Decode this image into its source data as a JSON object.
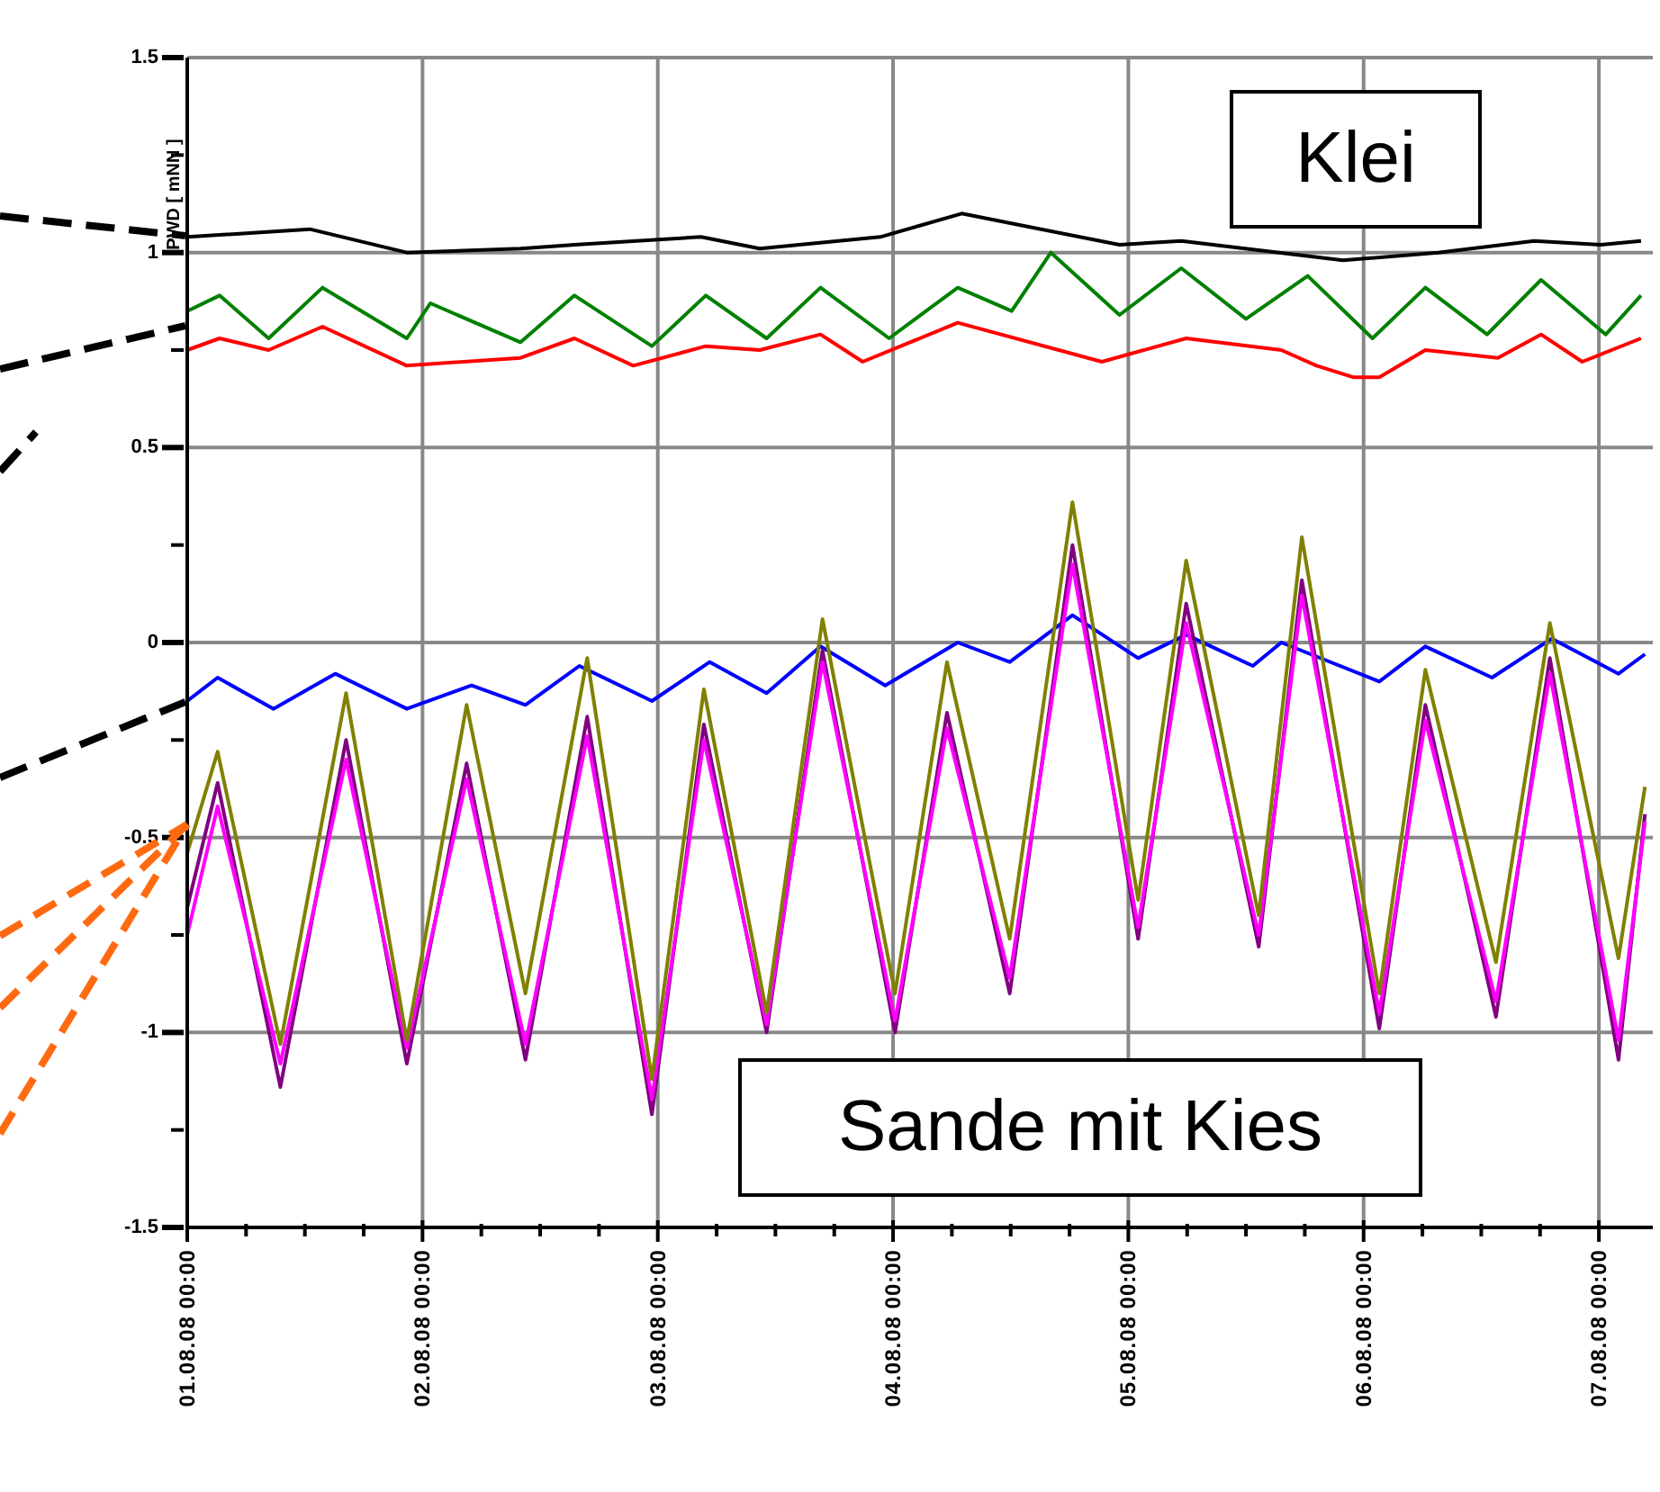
{
  "chart_data": {
    "type": "line",
    "ylabel": "PWD [ mNN ]",
    "xlim": [
      "--08-01T00:00",
      "--08-07T05:30"
    ],
    "xticks": [
      {
        "value": "--08-01T00:00",
        "label": "01.08.08 00:00"
      },
      {
        "value": "--08-01T06:00",
        "label": null
      },
      {
        "value": "--08-01T12:00",
        "label": null
      },
      {
        "value": "--08-01T18:00",
        "label": null
      },
      {
        "value": "--08-02T00:00",
        "label": "02.08.08 00:00"
      },
      {
        "value": "--08-02T06:00",
        "label": null
      },
      {
        "value": "--08-02T12:00",
        "label": null
      },
      {
        "value": "--08-02T18:00",
        "label": null
      },
      {
        "value": "--08-03T00:00",
        "label": "03.08.08 00:00"
      },
      {
        "value": "--08-03T06:00",
        "label": null
      },
      {
        "value": "--08-03T12:00",
        "label": null
      },
      {
        "value": "--08-03T18:00",
        "label": null
      },
      {
        "value": "--08-04T00:00",
        "label": "04.08.08 00:00"
      },
      {
        "value": "--08-04T06:00",
        "label": null
      },
      {
        "value": "--08-04T12:00",
        "label": null
      },
      {
        "value": "--08-04T18:00",
        "label": null
      },
      {
        "value": "--08-05T00:00",
        "label": "05.08.08 00:00"
      },
      {
        "value": "--08-05T06:00",
        "label": null
      },
      {
        "value": "--08-05T12:00",
        "label": null
      },
      {
        "value": "--08-05T18:00",
        "label": null
      },
      {
        "value": "--08-06T00:00",
        "label": "06.08.08 00:00"
      },
      {
        "value": "--08-06T06:00",
        "label": null
      },
      {
        "value": "--08-06T12:00",
        "label": null
      },
      {
        "value": "--08-06T18:00",
        "label": null
      },
      {
        "value": "--08-07T00:00",
        "label": "07.08.08 00:00"
      }
    ],
    "ylim": [
      -1.5,
      1.5
    ],
    "yticks": [
      -1.5,
      {
        "value": -1.25,
        "label": null
      },
      -1,
      {
        "value": -0.75,
        "label": null
      },
      -0.5,
      {
        "value": -0.25,
        "label": null
      },
      0,
      {
        "value": 0.25,
        "label": null
      },
      0.5,
      {
        "value": 0.75,
        "label": null
      },
      1,
      {
        "value": 1.25,
        "label": null
      },
      1.5
    ],
    "grid": true,
    "series": [
      {
        "color": "#000000",
        "x": [
          "--08-01T00:00",
          "--08-01T12:30",
          "--08-01T22:24",
          "--08-02T10:00",
          "--08-02T15:30",
          "--08-03T04:24",
          "--08-03T10:24",
          "--08-03T22:42",
          "--08-04T07:00",
          "--08-04T23:06",
          "--08-05T05:24",
          "--08-05T21:54",
          "--08-06T07:36",
          "--08-06T17:24",
          "--08-07T00:12",
          "--08-07T04:18"
        ],
        "values": [
          1.04,
          1.06,
          1.0,
          1.01,
          1.02,
          1.04,
          1.01,
          1.04,
          1.1,
          1.02,
          1.03,
          0.98,
          1.0,
          1.03,
          1.02,
          1.03
        ]
      },
      {
        "color": "#008000",
        "x": [
          "--08-01T00:00",
          "--08-01T03:18",
          "--08-01T08:18",
          "--08-01T13:48",
          "--08-01T22:24",
          "--08-02T00:48",
          "--08-02T10:00",
          "--08-02T15:30",
          "--08-02T23:24",
          "--08-03T04:54",
          "--08-03T11:06",
          "--08-03T16:36",
          "--08-03T23:36",
          "--08-04T06:36",
          "--08-04T12:06",
          "--08-04T16:06",
          "--08-04T23:06",
          "--08-05T05:24",
          "--08-05T12:00",
          "--08-05T18:18",
          "--08-06T00:54",
          "--08-06T06:18",
          "--08-06T12:36",
          "--08-06T18:06",
          "--08-07T00:42",
          "--08-07T04:18"
        ],
        "values": [
          0.85,
          0.89,
          0.78,
          0.91,
          0.78,
          0.87,
          0.77,
          0.89,
          0.76,
          0.89,
          0.78,
          0.91,
          0.78,
          0.91,
          0.85,
          1.0,
          0.84,
          0.96,
          0.83,
          0.94,
          0.78,
          0.91,
          0.79,
          0.93,
          0.79,
          0.89
        ]
      },
      {
        "color": "#ff0000",
        "x": [
          "--08-01T00:00",
          "--08-01T03:18",
          "--08-01T08:18",
          "--08-01T13:48",
          "--08-01T22:24",
          "--08-02T10:00",
          "--08-02T15:30",
          "--08-02T21:30",
          "--08-03T04:54",
          "--08-03T10:24",
          "--08-03T16:36",
          "--08-03T20:54",
          "--08-04T06:36",
          "--08-04T21:18",
          "--08-05T05:54",
          "--08-05T15:36",
          "--08-05T19:12",
          "--08-05T23:00",
          "--08-06T01:36",
          "--08-06T06:18",
          "--08-06T13:42",
          "--08-06T18:06",
          "--08-06T22:18",
          "--08-07T04:18"
        ],
        "values": [
          0.75,
          0.78,
          0.75,
          0.81,
          0.71,
          0.73,
          0.78,
          0.71,
          0.76,
          0.75,
          0.79,
          0.72,
          0.82,
          0.72,
          0.78,
          0.75,
          0.71,
          0.68,
          0.68,
          0.75,
          0.73,
          0.79,
          0.72,
          0.78
        ]
      },
      {
        "color": "#0000ff",
        "x": [
          "--08-01T00:00",
          "--08-01T03:06",
          "--08-01T08:48",
          "--08-01T15:06",
          "--08-01T22:24",
          "--08-02T05:00",
          "--08-02T10:30",
          "--08-02T16:00",
          "--08-02T23:24",
          "--08-03T05:18",
          "--08-03T11:06",
          "--08-03T16:36",
          "--08-03T23:12",
          "--08-04T06:36",
          "--08-04T11:54",
          "--08-04T18:18",
          "--08-05T01:00",
          "--08-05T05:54",
          "--08-05T12:42",
          "--08-05T15:36",
          "--08-06T01:36",
          "--08-06T06:18",
          "--08-06T13:06",
          "--08-06T19:12",
          "--08-07T02:00",
          "--08-07T04:42"
        ],
        "values": [
          -0.15,
          -0.09,
          -0.17,
          -0.08,
          -0.17,
          -0.11,
          -0.16,
          -0.06,
          -0.15,
          -0.05,
          -0.13,
          -0.01,
          -0.11,
          0.0,
          -0.05,
          0.07,
          -0.04,
          0.02,
          -0.06,
          0.0,
          -0.1,
          -0.01,
          -0.09,
          0.01,
          -0.08,
          -0.03
        ]
      },
      {
        "color": "#800080",
        "x": [
          "--08-01T00:00",
          "--08-01T03:06",
          "--08-01T09:30",
          "--08-01T16:12",
          "--08-01T22:24",
          "--08-02T04:30",
          "--08-02T10:30",
          "--08-02T16:48",
          "--08-02T23:24",
          "--08-03T04:42",
          "--08-03T11:06",
          "--08-03T16:48",
          "--08-04T00:12",
          "--08-04T05:30",
          "--08-04T11:54",
          "--08-04T18:18",
          "--08-05T01:00",
          "--08-05T05:54",
          "--08-05T13:18",
          "--08-05T17:42",
          "--08-06T01:36",
          "--08-06T06:18",
          "--08-06T13:30",
          "--08-06T19:00",
          "--08-07T02:00",
          "--08-07T04:42"
        ],
        "values": [
          -0.68,
          -0.36,
          -1.14,
          -0.25,
          -1.08,
          -0.31,
          -1.07,
          -0.19,
          -1.21,
          -0.21,
          -1.0,
          -0.02,
          -1.0,
          -0.18,
          -0.9,
          0.25,
          -0.76,
          0.1,
          -0.78,
          0.16,
          -0.99,
          -0.16,
          -0.96,
          -0.04,
          -1.07,
          -0.44
        ]
      },
      {
        "color": "#ff00ff",
        "x": [
          "--08-01T00:00",
          "--08-01T03:06",
          "--08-01T09:30",
          "--08-01T16:12",
          "--08-01T22:24",
          "--08-02T04:30",
          "--08-02T10:30",
          "--08-02T16:48",
          "--08-02T23:24",
          "--08-03T04:42",
          "--08-03T11:06",
          "--08-03T16:48",
          "--08-04T00:12",
          "--08-04T05:30",
          "--08-04T11:54",
          "--08-04T18:18",
          "--08-05T01:00",
          "--08-05T05:54",
          "--08-05T13:18",
          "--08-05T17:42",
          "--08-06T01:36",
          "--08-06T06:18",
          "--08-06T13:30",
          "--08-06T19:00",
          "--08-07T02:00",
          "--08-07T04:42"
        ],
        "values": [
          -0.75,
          -0.42,
          -1.08,
          -0.3,
          -1.04,
          -0.35,
          -1.03,
          -0.24,
          -1.17,
          -0.25,
          -0.98,
          -0.05,
          -0.97,
          -0.22,
          -0.86,
          0.2,
          -0.73,
          0.05,
          -0.75,
          0.12,
          -0.95,
          -0.2,
          -0.92,
          -0.08,
          -1.02,
          -0.46
        ]
      },
      {
        "color": "#808000",
        "x": [
          "--08-01T00:00",
          "--08-01T03:06",
          "--08-01T09:30",
          "--08-01T16:12",
          "--08-01T22:24",
          "--08-02T04:30",
          "--08-02T10:30",
          "--08-02T16:48",
          "--08-02T23:24",
          "--08-03T04:42",
          "--08-03T11:06",
          "--08-03T16:48",
          "--08-04T00:12",
          "--08-04T05:30",
          "--08-04T11:54",
          "--08-04T18:18",
          "--08-05T01:00",
          "--08-05T05:54",
          "--08-05T13:18",
          "--08-05T17:42",
          "--08-06T01:36",
          "--08-06T06:18",
          "--08-06T13:30",
          "--08-06T19:00",
          "--08-07T02:00",
          "--08-07T04:42"
        ],
        "values": [
          -0.54,
          -0.28,
          -1.03,
          -0.13,
          -1.02,
          -0.16,
          -0.9,
          -0.04,
          -1.12,
          -0.12,
          -0.95,
          0.06,
          -0.9,
          -0.05,
          -0.76,
          0.36,
          -0.66,
          0.21,
          -0.7,
          0.27,
          -0.9,
          -0.07,
          -0.82,
          0.05,
          -0.81,
          -0.37
        ]
      }
    ],
    "annotations": [
      "Klei",
      "Sande mit Kies"
    ]
  }
}
